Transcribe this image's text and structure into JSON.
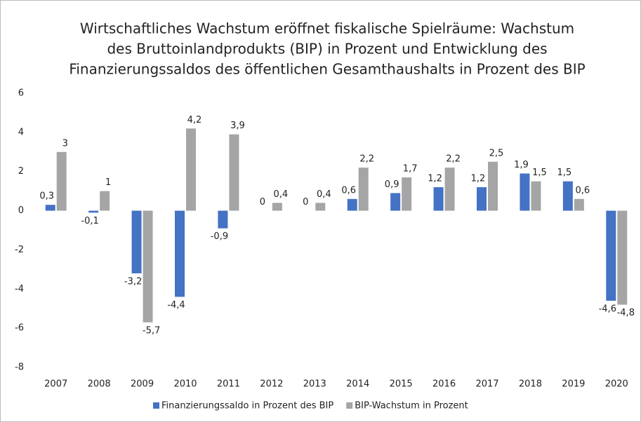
{
  "chart_data": {
    "type": "bar",
    "title": [
      "Wirtschaftliches Wachstum eröffnet fiskalische Spielräume: Wachstum",
      "des Bruttoinlandprodukts (BIP) in Prozent und  Entwicklung des",
      "Finanzierungssaldos des öffentlichen Gesamthaushalts in Prozent des BIP"
    ],
    "categories": [
      "2007",
      "2008",
      "2009",
      "2010",
      "2011",
      "2012",
      "2013",
      "2014",
      "2015",
      "2016",
      "2017",
      "2018",
      "2019",
      "2020"
    ],
    "series": [
      {
        "name": "Finanzierungssaldo in Prozent des BIP",
        "color": "#4472c4",
        "values": [
          0.3,
          -0.1,
          -3.2,
          -4.4,
          -0.9,
          0,
          0,
          0.6,
          0.9,
          1.2,
          1.2,
          1.9,
          1.5,
          -4.6
        ],
        "value_labels": [
          "0,3",
          "-0,1",
          "-3,2",
          "-4,4",
          "-0,9",
          "0",
          "0",
          "0,6",
          "0,9",
          "1,2",
          "1,2",
          "1,9",
          "1,5",
          "-4,6"
        ]
      },
      {
        "name": "BIP-Wachstum  in Prozent",
        "color": "#a5a5a5",
        "values": [
          3,
          1,
          -5.7,
          4.2,
          3.9,
          0.4,
          0.4,
          2.2,
          1.7,
          2.2,
          2.5,
          1.5,
          0.6,
          -4.8
        ],
        "value_labels": [
          "3",
          "1",
          "-5,7",
          "4,2",
          "3,9",
          "0,4",
          "0,4",
          "2,2",
          "1,7",
          "2,2",
          "2,5",
          "1,5",
          "0,6",
          "-4,8"
        ]
      }
    ],
    "ylim": [
      -8,
      6
    ],
    "yticks": [
      -8,
      -6,
      -4,
      -2,
      0,
      2,
      4,
      6
    ],
    "grid": false,
    "legend": "bottom"
  }
}
